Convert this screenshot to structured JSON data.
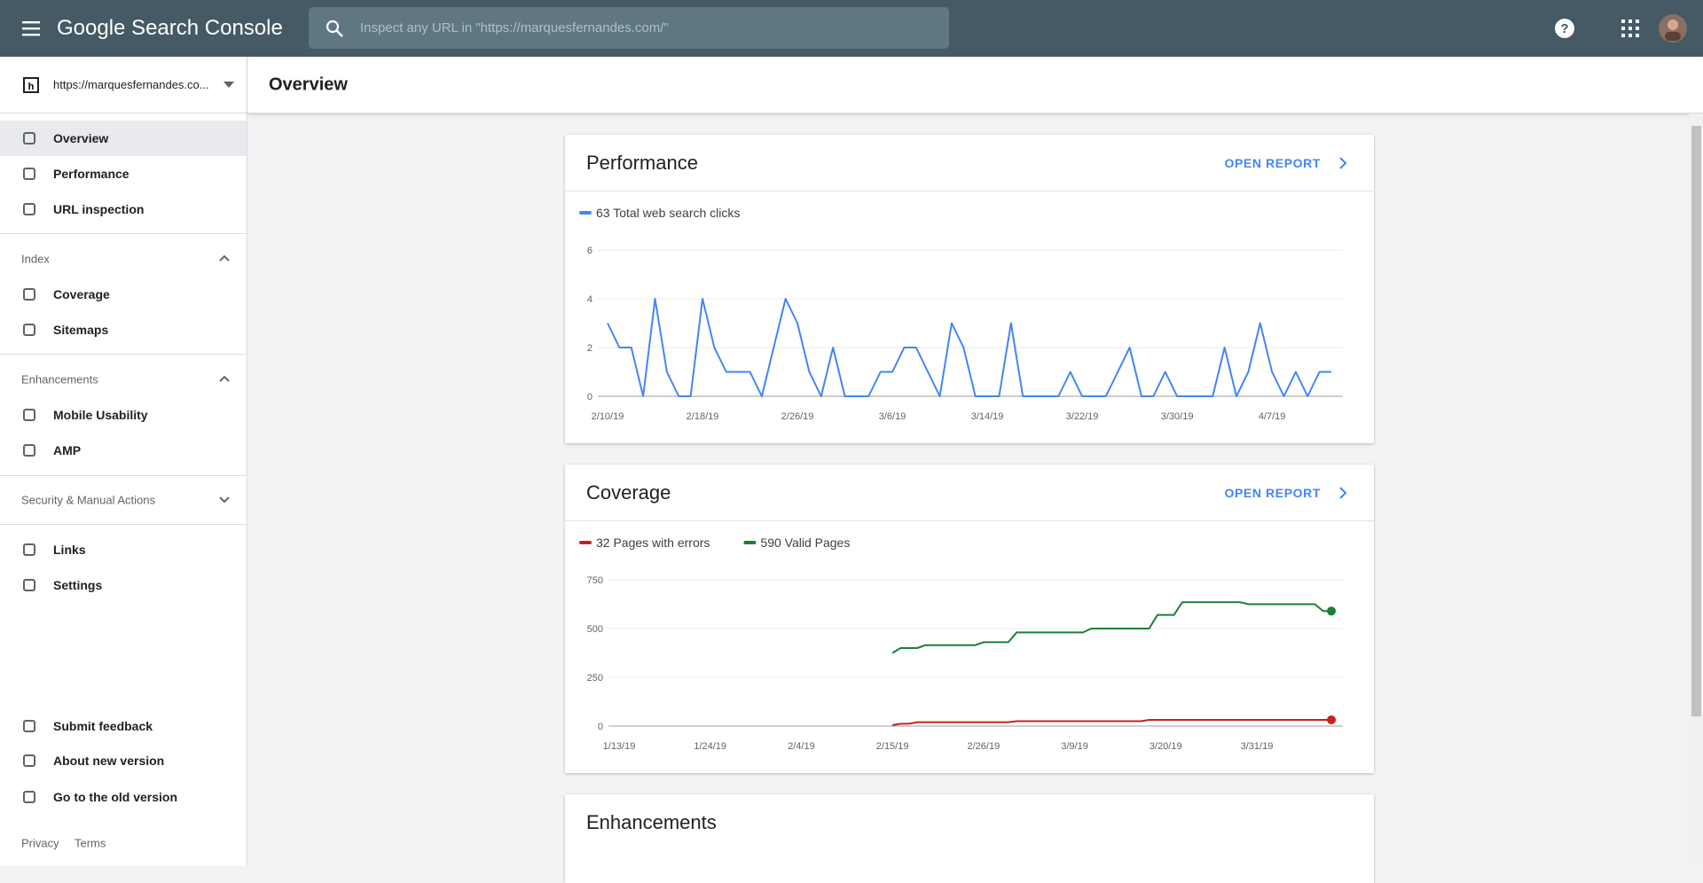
{
  "header": {
    "product": "Google Search Console",
    "search_placeholder": "Inspect any URL in \"https://marquesfernandes.com/\""
  },
  "sidebar": {
    "property": "https://marquesfernandes.co...",
    "nav": [
      "Overview",
      "Performance",
      "URL inspection"
    ],
    "index": {
      "title": "Index",
      "items": [
        "Coverage",
        "Sitemaps"
      ]
    },
    "enhancements": {
      "title": "Enhancements",
      "items": [
        "Mobile Usability",
        "AMP"
      ]
    },
    "security": "Security & Manual Actions",
    "more": [
      "Links",
      "Settings"
    ],
    "footer_nav": [
      "Submit feedback",
      "About new version",
      "Go to the old version"
    ],
    "legal": [
      "Privacy",
      "Terms"
    ]
  },
  "page_title": "Overview",
  "chart_data": [
    {
      "type": "line",
      "title": "Performance",
      "action": "OPEN REPORT",
      "categories": [
        "2/10/19",
        null,
        null,
        null,
        null,
        null,
        null,
        null,
        "2/18/19",
        null,
        null,
        null,
        null,
        null,
        null,
        null,
        "2/26/19",
        null,
        null,
        null,
        null,
        null,
        null,
        null,
        "3/6/19",
        null,
        null,
        null,
        null,
        null,
        null,
        null,
        "3/14/19",
        null,
        null,
        null,
        null,
        null,
        null,
        null,
        "3/22/19",
        null,
        null,
        null,
        null,
        null,
        null,
        null,
        "3/30/19",
        null,
        null,
        null,
        null,
        null,
        null,
        null,
        "4/7/19",
        null,
        null,
        null,
        null,
        null
      ],
      "series": [
        {
          "name": "63 Total web search clicks",
          "color": "#4285f4",
          "values": [
            3,
            2,
            2,
            0,
            4,
            1,
            0,
            0,
            4,
            2,
            1,
            1,
            1,
            0,
            2,
            4,
            3,
            1,
            0,
            2,
            0,
            0,
            0,
            1,
            1,
            2,
            2,
            1,
            0,
            3,
            2,
            0,
            0,
            0,
            3,
            0,
            0,
            0,
            0,
            1,
            0,
            0,
            0,
            1,
            2,
            0,
            0,
            1,
            0,
            0,
            0,
            0,
            2,
            0,
            1,
            3,
            1,
            0,
            1,
            0,
            1,
            1
          ]
        }
      ],
      "ylim": [
        0,
        6
      ],
      "yticks": [
        0,
        2,
        4,
        6
      ],
      "grid": true,
      "end_markers": false
    },
    {
      "type": "line",
      "title": "Coverage",
      "action": "OPEN REPORT",
      "categories": [
        "1/13/19",
        null,
        null,
        null,
        null,
        null,
        null,
        null,
        null,
        null,
        null,
        "1/24/19",
        null,
        null,
        null,
        null,
        null,
        null,
        null,
        null,
        null,
        null,
        "2/4/19",
        null,
        null,
        null,
        null,
        null,
        null,
        null,
        null,
        null,
        null,
        "2/15/19",
        null,
        null,
        null,
        null,
        null,
        null,
        null,
        null,
        null,
        null,
        "2/26/19",
        null,
        null,
        null,
        null,
        null,
        null,
        null,
        null,
        null,
        null,
        "3/9/19",
        null,
        null,
        null,
        null,
        null,
        null,
        null,
        null,
        null,
        null,
        "3/20/19",
        null,
        null,
        null,
        null,
        null,
        null,
        null,
        null,
        null,
        null,
        "3/31/19",
        null,
        null,
        null,
        null,
        null,
        null,
        null,
        null,
        null
      ],
      "series": [
        {
          "name": "32 Pages with errors",
          "color": "#c5221f",
          "values": [
            null,
            null,
            null,
            null,
            null,
            null,
            null,
            null,
            null,
            null,
            null,
            null,
            null,
            null,
            null,
            null,
            null,
            null,
            null,
            null,
            null,
            null,
            null,
            null,
            null,
            null,
            null,
            null,
            null,
            null,
            null,
            null,
            null,
            5,
            12,
            12,
            20,
            20,
            20,
            20,
            20,
            20,
            20,
            20,
            20,
            20,
            20,
            20,
            25,
            25,
            25,
            25,
            25,
            25,
            25,
            25,
            25,
            25,
            25,
            25,
            25,
            25,
            25,
            25,
            32,
            32,
            32,
            32,
            32,
            32,
            32,
            32,
            32,
            32,
            32,
            32,
            32,
            32,
            32,
            32,
            32,
            32,
            32,
            32,
            32,
            32,
            32
          ]
        },
        {
          "name": "590 Valid Pages",
          "color": "#188038",
          "values": [
            null,
            null,
            null,
            null,
            null,
            null,
            null,
            null,
            null,
            null,
            null,
            null,
            null,
            null,
            null,
            null,
            null,
            null,
            null,
            null,
            null,
            null,
            null,
            null,
            null,
            null,
            null,
            null,
            null,
            null,
            null,
            null,
            null,
            375,
            400,
            400,
            400,
            415,
            415,
            415,
            415,
            415,
            415,
            415,
            430,
            430,
            430,
            430,
            480,
            480,
            480,
            480,
            480,
            480,
            480,
            480,
            480,
            500,
            500,
            500,
            500,
            500,
            500,
            500,
            500,
            570,
            570,
            570,
            635,
            635,
            635,
            635,
            635,
            635,
            635,
            635,
            625,
            625,
            625,
            625,
            625,
            625,
            625,
            625,
            625,
            590,
            590
          ]
        }
      ],
      "ylim": [
        0,
        750
      ],
      "yticks": [
        0,
        250,
        500,
        750
      ],
      "grid": true,
      "end_markers": true
    }
  ],
  "enhancements_card": {
    "title": "Enhancements"
  }
}
